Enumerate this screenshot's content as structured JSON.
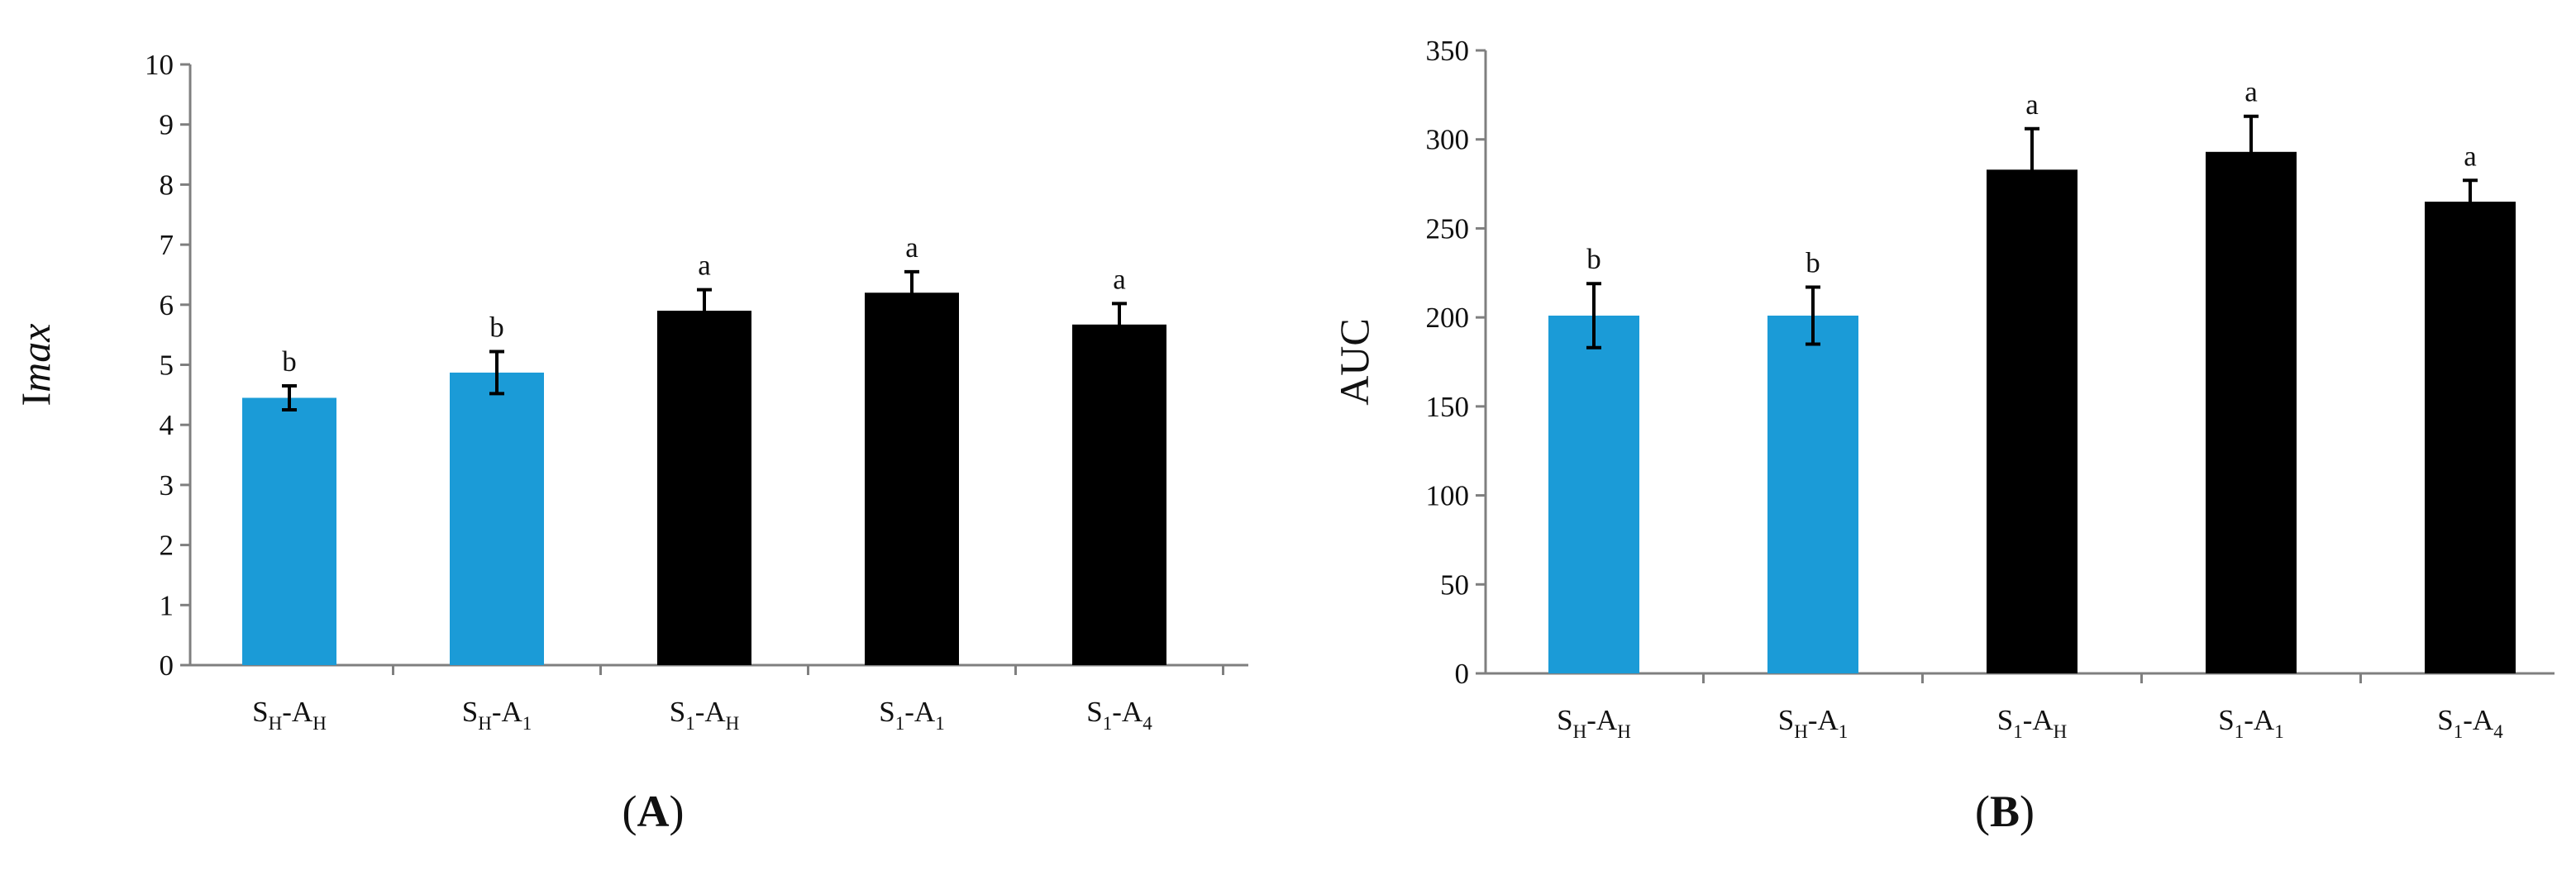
{
  "colors": {
    "blue": "#1b9bd7",
    "black": "#000000",
    "axis": "#7f7f7f"
  },
  "chart_data": [
    {
      "type": "bar",
      "panel_label": "A",
      "ylabel": {
        "main": "I",
        "italic": "max"
      },
      "ylim": [
        0,
        10
      ],
      "yticks": [
        0,
        1,
        2,
        3,
        4,
        5,
        6,
        7,
        8,
        9,
        10
      ],
      "grid": false,
      "categories": [
        {
          "parts": [
            [
              "S",
              "H"
            ],
            [
              "A",
              "H"
            ]
          ]
        },
        {
          "parts": [
            [
              "S",
              "H"
            ],
            [
              "A",
              "1"
            ]
          ]
        },
        {
          "parts": [
            [
              "S",
              "1"
            ],
            [
              "A",
              "H"
            ]
          ]
        },
        {
          "parts": [
            [
              "S",
              "1"
            ],
            [
              "A",
              "1"
            ]
          ]
        },
        {
          "parts": [
            [
              "S",
              "1"
            ],
            [
              "A",
              "4"
            ]
          ]
        }
      ],
      "values": [
        4.45,
        4.87,
        5.9,
        6.2,
        5.67
      ],
      "errors": [
        0.2,
        0.35,
        0.35,
        0.35,
        0.35
      ],
      "significance": [
        "b",
        "b",
        "a",
        "a",
        "a"
      ],
      "bar_colors": [
        "blue",
        "blue",
        "black",
        "black",
        "black"
      ]
    },
    {
      "type": "bar",
      "panel_label": "B",
      "ylabel": {
        "main": "AUC",
        "italic": ""
      },
      "ylim": [
        0,
        350
      ],
      "yticks": [
        0,
        50,
        100,
        150,
        200,
        250,
        300,
        350
      ],
      "grid": false,
      "categories": [
        {
          "parts": [
            [
              "S",
              "H"
            ],
            [
              "A",
              "H"
            ]
          ]
        },
        {
          "parts": [
            [
              "S",
              "H"
            ],
            [
              "A",
              "1"
            ]
          ]
        },
        {
          "parts": [
            [
              "S",
              "1"
            ],
            [
              "A",
              "H"
            ]
          ]
        },
        {
          "parts": [
            [
              "S",
              "1"
            ],
            [
              "A",
              "1"
            ]
          ]
        },
        {
          "parts": [
            [
              "S",
              "1"
            ],
            [
              "A",
              "4"
            ]
          ]
        }
      ],
      "values": [
        201,
        201,
        283,
        293,
        265
      ],
      "errors": [
        18,
        16,
        23,
        20,
        12
      ],
      "significance": [
        "b",
        "b",
        "a",
        "a",
        "a"
      ],
      "bar_colors": [
        "blue",
        "blue",
        "black",
        "black",
        "black"
      ]
    }
  ]
}
